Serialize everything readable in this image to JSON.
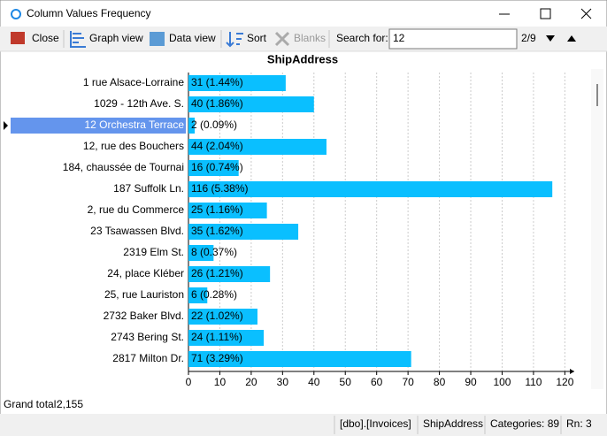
{
  "window": {
    "title": "Column Values Frequency"
  },
  "toolbar": {
    "close": "Close",
    "graph_view": "Graph view",
    "data_view": "Data view",
    "sort": "Sort",
    "blanks": "Blanks",
    "search_label": "Search for:",
    "search_value": "12",
    "match_position": "2/9"
  },
  "chart_data": {
    "type": "hbar",
    "title": "ShipAddress",
    "categories": [
      "1 rue Alsace-Lorraine",
      "1029 - 12th Ave. S.",
      "12 Orchestra Terrace",
      "12, rue des Bouchers",
      "184, chaussée de Tournai",
      "187 Suffolk Ln.",
      "2, rue du Commerce",
      "23 Tsawassen Blvd.",
      "2319 Elm St.",
      "24, place Kléber",
      "25, rue Lauriston",
      "2732 Baker Blvd.",
      "2743 Bering St.",
      "2817 Milton Dr."
    ],
    "values": [
      31,
      40,
      2,
      44,
      16,
      116,
      25,
      35,
      8,
      26,
      6,
      22,
      24,
      71
    ],
    "value_labels": [
      "31 (1.44%)",
      "40 (1.86%)",
      "2 (0.09%)",
      "44 (2.04%)",
      "16 (0.74%)",
      "116 (5.38%)",
      "25 (1.16%)",
      "35 (1.62%)",
      "8 (0.37%)",
      "26 (1.21%)",
      "6 (0.28%)",
      "22 (1.02%)",
      "24 (1.11%)",
      "71 (3.29%)"
    ],
    "color": "#0abfff",
    "selected": 2,
    "xlim": [
      0,
      123
    ],
    "xticks": [
      0,
      10,
      20,
      30,
      40,
      50,
      60,
      70,
      80,
      90,
      100,
      110,
      120
    ],
    "grid": true
  },
  "footer": {
    "grand_total_label": "Grand total:",
    "grand_total_value": "2,155"
  },
  "status": {
    "table": "[dbo].[Invoices]",
    "column": "ShipAddress",
    "categories": "Categories: 89",
    "row": "Rn: 3"
  }
}
